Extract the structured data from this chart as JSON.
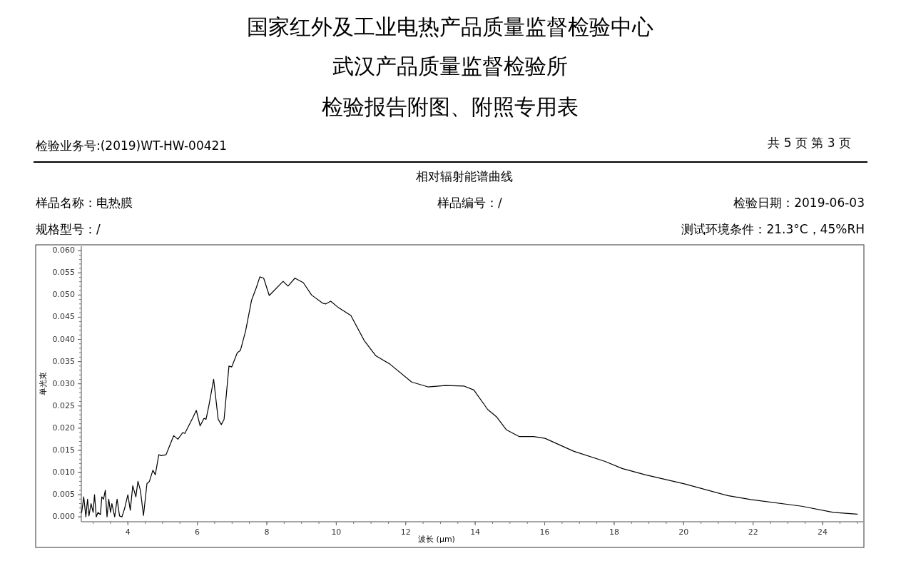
{
  "chart_data": {
    "type": "line",
    "title": "国家红外及工业电热产品质量监督检验中心",
    "subtitle": "武汉产品质量监督检验所",
    "annotations": [
      "检验报告附图、附照专用表",
      "检验业务号:(2019)WT-HW-00421",
      "共 5 页 第 3 页",
      "相对辐射能谱曲线",
      "样品名称：电热膜",
      "样品编号：/",
      "检验日期：2019-06-03",
      "规格型号：/",
      "测试环境条件：21.3°C，45%RH"
    ],
    "xlabel": "波长 (μm)",
    "ylabel": "单光束",
    "xlim": [
      2.66,
      25.17
    ],
    "ylim": [
      -0.0011,
      0.061
    ],
    "xticks": [
      4,
      6,
      8,
      10,
      12,
      14,
      16,
      18,
      20,
      22,
      24
    ],
    "yticks": [
      {
        "value": 0,
        "label": "0.000"
      },
      {
        "value": 0.005,
        "label": "0.005"
      },
      {
        "value": 0.01,
        "label": "0.010"
      },
      {
        "value": 0.015,
        "label": "0.015"
      },
      {
        "value": 0.02,
        "label": "0.020"
      },
      {
        "value": 0.025,
        "label": "0.025"
      },
      {
        "value": 0.03,
        "label": "0.030"
      },
      {
        "value": 0.035,
        "label": "0.035"
      },
      {
        "value": 0.04,
        "label": "0.040"
      },
      {
        "value": 0.045,
        "label": "0.045"
      },
      {
        "value": 0.05,
        "label": "0.050"
      },
      {
        "value": 0.055,
        "label": "0.055"
      },
      {
        "value": 0.06,
        "label": "0.060"
      }
    ],
    "marker": "none",
    "line_style": "solid",
    "series": [
      {
        "color": "#000000",
        "x": [
          2.67,
          2.73,
          2.79,
          2.84,
          2.88,
          2.94,
          3.0,
          3.04,
          3.09,
          3.14,
          3.21,
          3.25,
          3.3,
          3.35,
          3.4,
          3.45,
          3.5,
          3.54,
          3.62,
          3.69,
          3.76,
          3.83,
          3.91,
          4.0,
          4.07,
          4.14,
          4.23,
          4.29,
          4.36,
          4.45,
          4.55,
          4.62,
          4.72,
          4.79,
          4.89,
          4.96,
          5.1,
          5.2,
          5.32,
          5.44,
          5.58,
          5.64,
          5.75,
          5.88,
          5.97,
          6.08,
          6.19,
          6.25,
          6.33,
          6.47,
          6.6,
          6.69,
          6.77,
          6.91,
          6.99,
          7.15,
          7.24,
          7.39,
          7.56,
          7.7,
          7.8,
          7.91,
          8.07,
          8.47,
          8.61,
          8.81,
          9.05,
          9.29,
          9.6,
          9.7,
          9.84,
          10.04,
          10.42,
          10.8,
          11.14,
          11.55,
          12.17,
          12.64,
          13.14,
          13.67,
          13.96,
          14.36,
          14.62,
          14.9,
          15.27,
          15.68,
          16.01,
          16.83,
          17.74,
          18.23,
          18.89,
          20.04,
          21.27,
          21.93,
          23.4,
          24.31,
          25.0
        ],
        "values": [
          0.001,
          0.0045,
          0,
          0.004,
          0.0002,
          0.003,
          0.001,
          0.005,
          0,
          0.001,
          0.0005,
          0.0045,
          0.004,
          0.006,
          0,
          0.004,
          0.001,
          0.003,
          0,
          0.004,
          0.0002,
          0,
          0.002,
          0.005,
          0.0015,
          0.007,
          0.0045,
          0.008,
          0.006,
          0.0003,
          0.0075,
          0.008,
          0.0105,
          0.0095,
          0.014,
          0.0138,
          0.014,
          0.016,
          0.0183,
          0.0175,
          0.019,
          0.0188,
          0.0205,
          0.0225,
          0.024,
          0.0205,
          0.0222,
          0.022,
          0.025,
          0.031,
          0.022,
          0.0208,
          0.022,
          0.034,
          0.0338,
          0.037,
          0.0375,
          0.0419,
          0.0488,
          0.0517,
          0.0541,
          0.0538,
          0.0499,
          0.0531,
          0.052,
          0.0538,
          0.0528,
          0.05,
          0.0482,
          0.048,
          0.0486,
          0.0473,
          0.0454,
          0.0398,
          0.0363,
          0.0344,
          0.0304,
          0.0293,
          0.0296,
          0.0295,
          0.0286,
          0.0242,
          0.0225,
          0.0196,
          0.0181,
          0.0181,
          0.0177,
          0.0148,
          0.0125,
          0.0109,
          0.0095,
          0.0074,
          0.0048,
          0.0039,
          0.0024,
          0.001,
          0.0006
        ]
      }
    ]
  }
}
